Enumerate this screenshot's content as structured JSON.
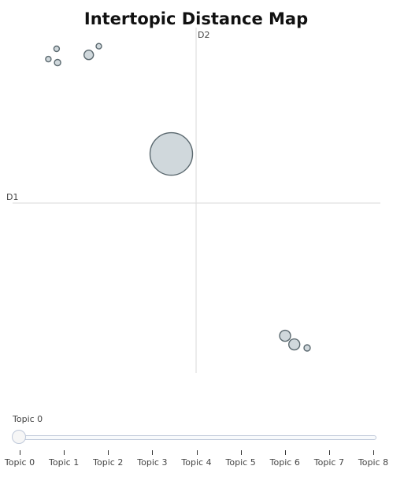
{
  "chart_data": {
    "type": "scatter",
    "title": "Intertopic Distance Map",
    "xlabel": "D1",
    "ylabel": "D2",
    "grid": false,
    "xlim": [
      -10,
      10
    ],
    "ylim": [
      -10,
      10
    ],
    "points": [
      {
        "topic": "Topic 0",
        "x": -1.35,
        "y": 2.85,
        "size": 27
      },
      {
        "topic": "Topic 1",
        "x": -5.85,
        "y": 8.6,
        "size": 6
      },
      {
        "topic": "Topic 2",
        "x": -7.55,
        "y": 8.15,
        "size": 4
      },
      {
        "topic": "Topic 3",
        "x": -8.05,
        "y": 8.35,
        "size": 3.5
      },
      {
        "topic": "Topic 4",
        "x": -7.6,
        "y": 8.95,
        "size": 3.5
      },
      {
        "topic": "Topic 5",
        "x": -5.3,
        "y": 9.1,
        "size": 3.5
      },
      {
        "topic": "Topic 6",
        "x": 4.85,
        "y": -7.7,
        "size": 7
      },
      {
        "topic": "Topic 7",
        "x": 5.35,
        "y": -8.2,
        "size": 7
      },
      {
        "topic": "Topic 8",
        "x": 6.05,
        "y": -8.4,
        "size": 4
      }
    ]
  },
  "slider": {
    "current_label": "Topic 0",
    "steps": [
      "Topic 0",
      "Topic 1",
      "Topic 2",
      "Topic 3",
      "Topic 4",
      "Topic 5",
      "Topic 6",
      "Topic 7",
      "Topic 8"
    ],
    "active_index": 0
  },
  "colors": {
    "bubble_fill": "#b0bec5",
    "bubble_stroke": "#37474f",
    "axis_line": "#e0e0e0"
  }
}
